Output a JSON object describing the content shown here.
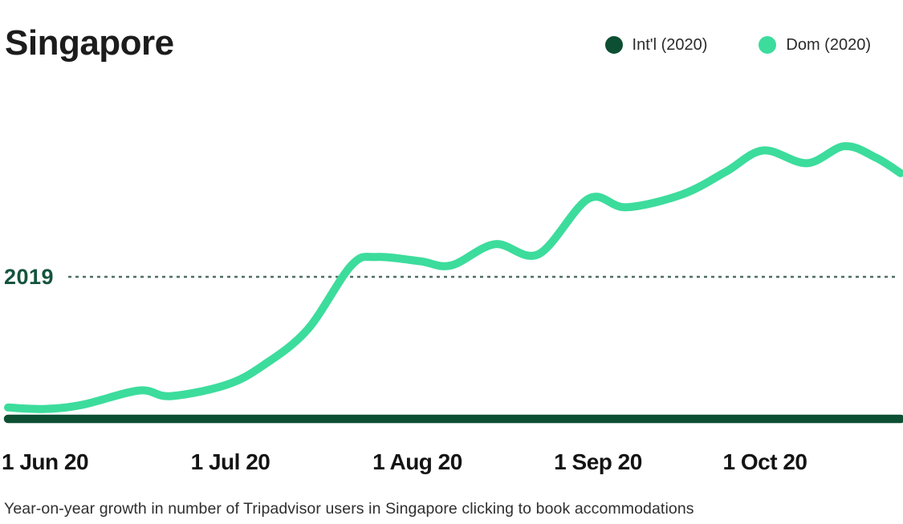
{
  "header": {
    "title": "Singapore"
  },
  "legend": {
    "items": [
      {
        "label": "Int'l (2020)",
        "color": "#0d4f33"
      },
      {
        "label": "Dom (2020)",
        "color": "#3cdc9c"
      }
    ]
  },
  "baseline": {
    "label": "2019"
  },
  "caption": "Year-on-year growth in number of Tripadvisor users in Singapore clicking to book accommodations",
  "chart_data": {
    "type": "line",
    "title": "Singapore",
    "caption": "Year-on-year growth in number of Tripadvisor users in Singapore clicking to book accommodations",
    "x_unit": "date, 2020 (days from 1 Jun 20)",
    "x_tick_labels": [
      "1 Jun 20",
      "1 Jul 20",
      "1 Aug 20",
      "1 Sep 20",
      "1 Oct 20"
    ],
    "x_tick_days": [
      0,
      30,
      61,
      92,
      122
    ],
    "x_range_days": [
      0,
      143
    ],
    "y_unit": "year-on-year index vs 2019 (2019 baseline = 100)",
    "ylim": [
      0,
      215
    ],
    "grid": false,
    "legend_position": "top-right",
    "baseline": {
      "label": "2019",
      "value": 100
    },
    "series": [
      {
        "name": "Int'l (2020)",
        "color": "#0d4f33",
        "stroke_width": 10.5,
        "points": [
          [
            0,
            0
          ],
          [
            143,
            0
          ]
        ]
      },
      {
        "name": "Dom (2020)",
        "color": "#3cdc9c",
        "stroke_width": 10,
        "points": [
          [
            0,
            8
          ],
          [
            6,
            7
          ],
          [
            12,
            10
          ],
          [
            21,
            20
          ],
          [
            26,
            16
          ],
          [
            35,
            24
          ],
          [
            41,
            38
          ],
          [
            48,
            63
          ],
          [
            55,
            108
          ],
          [
            59,
            114
          ],
          [
            66,
            111
          ],
          [
            71,
            108
          ],
          [
            78,
            123
          ],
          [
            85,
            116
          ],
          [
            93,
            155
          ],
          [
            99,
            149
          ],
          [
            108,
            158
          ],
          [
            115,
            174
          ],
          [
            121,
            189
          ],
          [
            128,
            180
          ],
          [
            134,
            192
          ],
          [
            139,
            184
          ],
          [
            143,
            173
          ]
        ]
      }
    ],
    "baseline_style": {
      "dash_color": "#4f6e60",
      "dash": "4 5",
      "label_color": "#15543d"
    }
  }
}
